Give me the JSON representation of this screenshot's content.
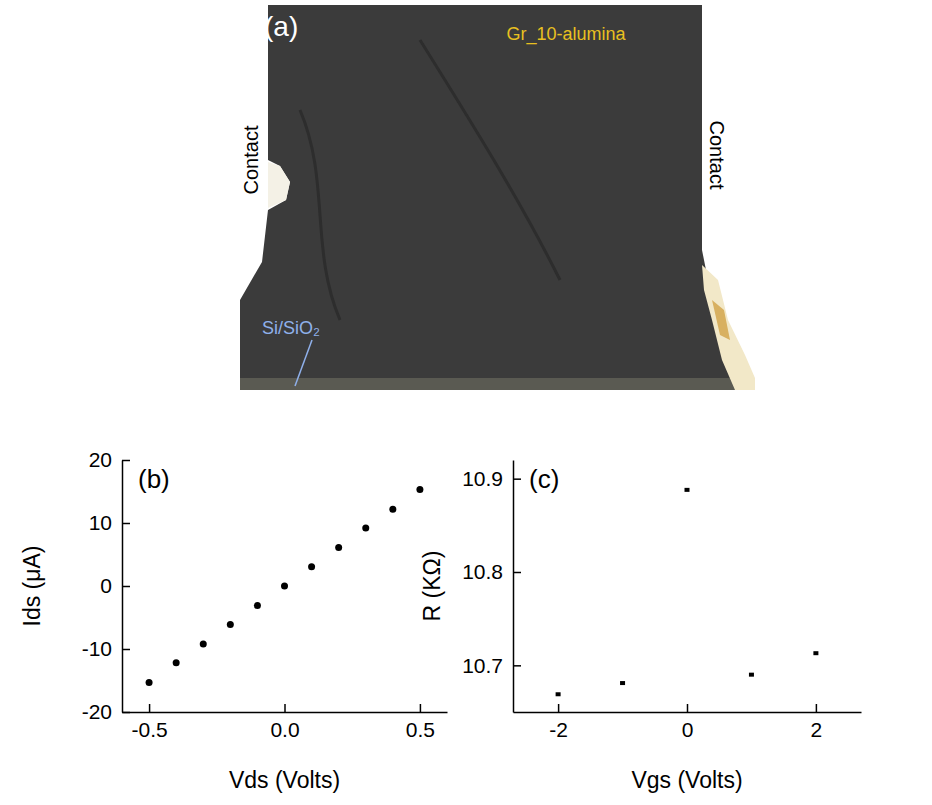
{
  "panel_a": {
    "label": "(a)",
    "sample": "Gr_10-alumina",
    "contacts": [
      "Contact",
      "Contact"
    ],
    "substrate": "Si/SiO₂"
  },
  "chart_data": [
    {
      "type": "scatter",
      "title": "(b)",
      "x_label": "Vds (Volts)",
      "y_label": "Ids (μA)",
      "x": [
        -0.5,
        -0.4,
        -0.3,
        -0.2,
        -0.1,
        0,
        0.1,
        0.2,
        0.3,
        0.4,
        0.5
      ],
      "series": [
        {
          "color": "#000000",
          "marker": "circle",
          "values": [
            -15.3,
            -12.2,
            -9.2,
            -6.1,
            -3.1,
            0,
            3.05,
            6.1,
            9.2,
            12.2,
            15.3
          ]
        }
      ],
      "xlim": [
        -0.6,
        0.6
      ],
      "xticks": [
        -0.5,
        {
          "value": 0,
          "label": "0.0"
        },
        0.5
      ],
      "ylim": [
        -20,
        20
      ],
      "yticks": [
        -20,
        -10,
        0,
        10,
        20
      ]
    },
    {
      "type": "scatter",
      "title": "(c)",
      "x_label": "Vgs (Volts)",
      "y_label": "R (KΩ)",
      "x": [
        -2,
        -1,
        0,
        1,
        2
      ],
      "series": [
        {
          "color": "#000000",
          "marker": "square",
          "values": [
            10.669,
            10.681,
            10.888,
            10.69,
            10.713
          ]
        }
      ],
      "xlim": [
        -2.7,
        2.7
      ],
      "xticks": [
        -2,
        0,
        2
      ],
      "ylim": [
        10.65,
        10.92
      ],
      "yticks": [
        10.7,
        10.8,
        10.9
      ]
    }
  ]
}
